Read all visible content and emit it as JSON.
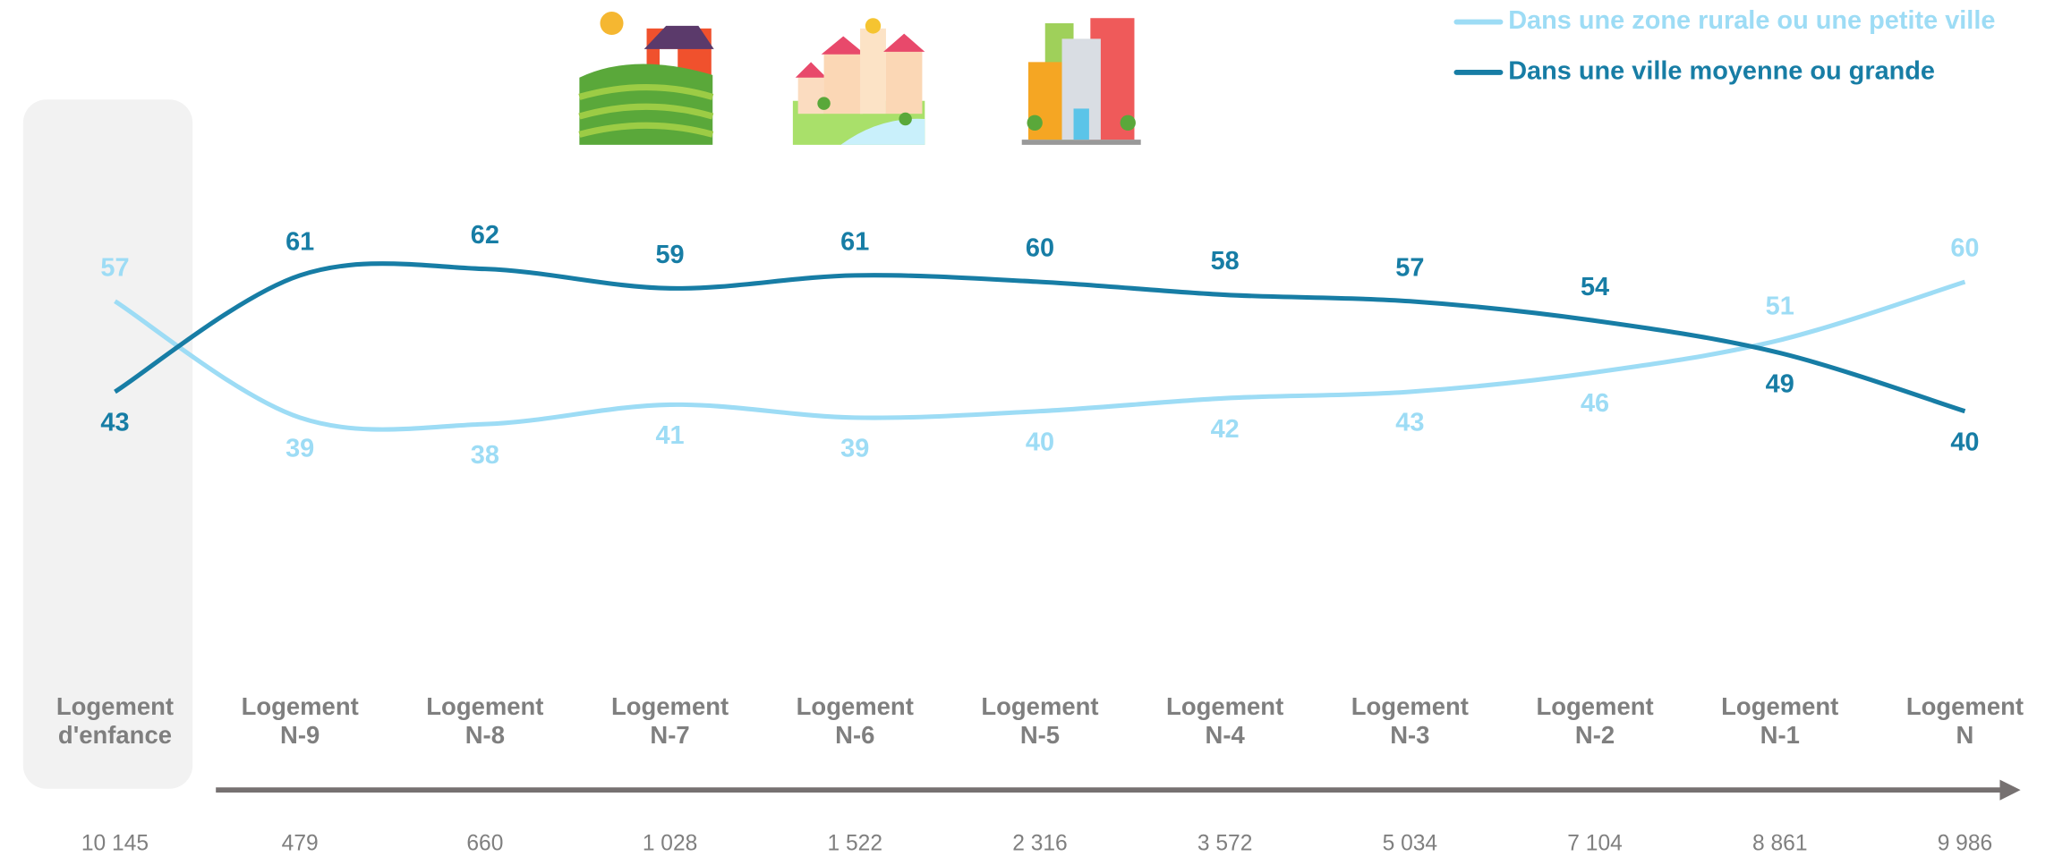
{
  "chart_data": {
    "type": "line",
    "categories": [
      "Logement d'enfance",
      "Logement N-9",
      "Logement N-8",
      "Logement N-7",
      "Logement N-6",
      "Logement N-5",
      "Logement N-4",
      "Logement N-3",
      "Logement N-2",
      "Logement N-1",
      "Logement N"
    ],
    "counts": [
      "10 145",
      "479",
      "660",
      "1 028",
      "1 522",
      "2 316",
      "3 572",
      "5 034",
      "7 104",
      "8 861",
      "9 986"
    ],
    "series": [
      {
        "name": "Dans une zone rurale ou une petite ville",
        "color": "#9ddcf5",
        "values": [
          57,
          39,
          38,
          41,
          39,
          40,
          42,
          43,
          46,
          51,
          60
        ]
      },
      {
        "name": "Dans une ville moyenne ou grande",
        "color": "#177da5",
        "values": [
          43,
          61,
          62,
          59,
          61,
          60,
          58,
          57,
          54,
          49,
          40
        ]
      }
    ],
    "legend": "top-right"
  }
}
